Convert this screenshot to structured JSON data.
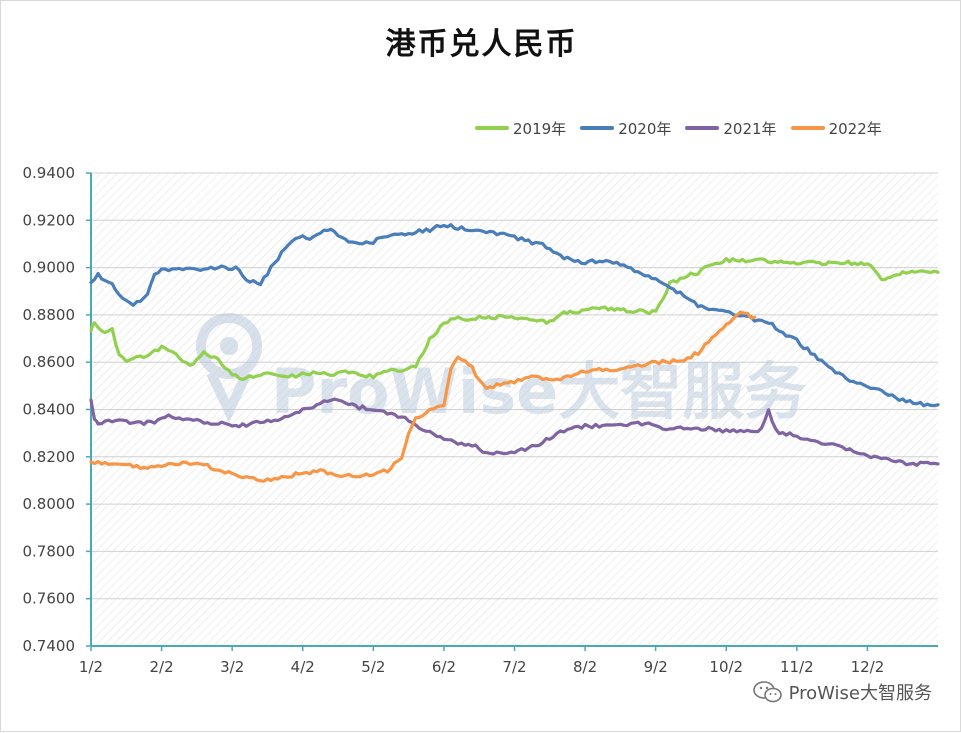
{
  "chart_data": {
    "type": "line",
    "title": "港币兑人民币",
    "xlabel": "",
    "ylabel": "",
    "ylim": [
      0.74,
      0.94
    ],
    "y_ticks": [
      "0.9400",
      "0.9200",
      "0.9000",
      "0.8800",
      "0.8600",
      "0.8400",
      "0.8200",
      "0.8000",
      "0.7800",
      "0.7600",
      "0.7400"
    ],
    "x_ticks": [
      "1/2",
      "2/2",
      "3/2",
      "4/2",
      "5/2",
      "6/2",
      "7/2",
      "8/2",
      "9/2",
      "10/2",
      "11/2",
      "12/2"
    ],
    "x_domain_months": [
      0,
      12
    ],
    "legend_position": "top-right",
    "grid": true,
    "series": [
      {
        "name": "2019年",
        "color": "#92d050",
        "x": [
          0.0,
          0.05,
          0.2,
          0.3,
          0.4,
          0.5,
          0.6,
          0.8,
          1.0,
          1.2,
          1.4,
          1.6,
          1.8,
          1.9,
          2.0,
          2.1,
          2.3,
          2.5,
          2.7,
          2.9,
          3.0,
          3.2,
          3.4,
          3.6,
          3.8,
          4.0,
          4.2,
          4.4,
          4.6,
          4.8,
          5.0,
          5.1,
          5.2,
          5.35,
          5.5,
          6.0,
          6.5,
          6.7,
          7.0,
          7.2,
          7.5,
          8.0,
          8.2,
          8.4,
          8.6,
          8.8,
          9.0,
          9.5,
          10.0,
          10.5,
          11.0,
          11.2,
          11.5,
          11.8,
          12.0
        ],
        "values": [
          0.874,
          0.876,
          0.873,
          0.874,
          0.863,
          0.861,
          0.862,
          0.863,
          0.866,
          0.863,
          0.858,
          0.864,
          0.861,
          0.857,
          0.855,
          0.853,
          0.854,
          0.855,
          0.854,
          0.854,
          0.855,
          0.856,
          0.855,
          0.856,
          0.855,
          0.854,
          0.856,
          0.857,
          0.858,
          0.87,
          0.876,
          0.879,
          0.879,
          0.878,
          0.879,
          0.879,
          0.877,
          0.881,
          0.882,
          0.883,
          0.882,
          0.881,
          0.893,
          0.896,
          0.898,
          0.902,
          0.903,
          0.903,
          0.902,
          0.902,
          0.902,
          0.895,
          0.898,
          0.898,
          0.898
        ]
      },
      {
        "name": "2020年",
        "color": "#4a7ebb",
        "x": [
          0.0,
          0.1,
          0.3,
          0.4,
          0.5,
          0.6,
          0.7,
          0.8,
          0.9,
          1.0,
          1.2,
          1.4,
          1.6,
          1.8,
          2.0,
          2.1,
          2.2,
          2.4,
          2.6,
          2.8,
          3.0,
          3.1,
          3.2,
          3.4,
          3.6,
          3.8,
          4.0,
          4.2,
          4.4,
          4.6,
          4.8,
          5.0,
          5.2,
          5.4,
          5.6,
          5.8,
          6.0,
          6.2,
          6.4,
          6.6,
          6.8,
          7.0,
          7.2,
          7.4,
          7.6,
          7.8,
          8.0,
          8.2,
          8.4,
          8.6,
          8.8,
          9.0,
          9.2,
          9.4,
          9.6,
          9.8,
          10.0,
          10.2,
          10.4,
          10.6,
          10.8,
          11.0,
          11.2,
          11.4,
          11.6,
          11.8,
          12.0
        ],
        "values": [
          0.893,
          0.897,
          0.893,
          0.888,
          0.886,
          0.884,
          0.886,
          0.889,
          0.897,
          0.899,
          0.899,
          0.899,
          0.899,
          0.9,
          0.9,
          0.899,
          0.895,
          0.893,
          0.902,
          0.91,
          0.914,
          0.912,
          0.914,
          0.916,
          0.912,
          0.91,
          0.911,
          0.913,
          0.914,
          0.915,
          0.916,
          0.918,
          0.917,
          0.916,
          0.915,
          0.914,
          0.913,
          0.911,
          0.91,
          0.906,
          0.903,
          0.902,
          0.903,
          0.902,
          0.9,
          0.897,
          0.895,
          0.892,
          0.888,
          0.884,
          0.882,
          0.881,
          0.88,
          0.878,
          0.877,
          0.872,
          0.869,
          0.864,
          0.859,
          0.855,
          0.852,
          0.85,
          0.848,
          0.845,
          0.843,
          0.842,
          0.842
        ]
      },
      {
        "name": "2021年",
        "color": "#8064a2",
        "x": [
          0.0,
          0.05,
          0.1,
          0.3,
          0.5,
          0.7,
          0.9,
          1.1,
          1.3,
          1.5,
          1.7,
          1.9,
          2.1,
          2.3,
          2.5,
          2.7,
          2.9,
          3.0,
          3.2,
          3.4,
          3.6,
          3.8,
          4.0,
          4.2,
          4.4,
          4.6,
          4.8,
          5.0,
          5.2,
          5.4,
          5.6,
          5.8,
          6.0,
          6.2,
          6.4,
          6.6,
          6.8,
          7.0,
          7.2,
          7.4,
          7.6,
          7.8,
          8.0,
          8.2,
          8.4,
          8.6,
          8.8,
          9.0,
          9.2,
          9.4,
          9.5,
          9.6,
          9.7,
          9.8,
          10.0,
          10.2,
          10.4,
          10.6,
          10.8,
          11.0,
          11.2,
          11.4,
          11.6,
          11.8,
          12.0
        ],
        "values": [
          0.844,
          0.836,
          0.834,
          0.835,
          0.835,
          0.834,
          0.835,
          0.837,
          0.836,
          0.835,
          0.834,
          0.834,
          0.833,
          0.834,
          0.835,
          0.836,
          0.838,
          0.84,
          0.842,
          0.844,
          0.843,
          0.841,
          0.84,
          0.838,
          0.837,
          0.833,
          0.83,
          0.828,
          0.826,
          0.825,
          0.822,
          0.821,
          0.822,
          0.824,
          0.826,
          0.83,
          0.832,
          0.833,
          0.833,
          0.834,
          0.834,
          0.834,
          0.833,
          0.832,
          0.832,
          0.832,
          0.832,
          0.831,
          0.831,
          0.831,
          0.832,
          0.84,
          0.831,
          0.83,
          0.829,
          0.827,
          0.826,
          0.825,
          0.822,
          0.82,
          0.819,
          0.818,
          0.817,
          0.817,
          0.817
        ]
      },
      {
        "name": "2022年",
        "color": "#f79646",
        "x": [
          0.0,
          0.2,
          0.4,
          0.6,
          0.8,
          1.0,
          1.2,
          1.4,
          1.6,
          1.8,
          2.0,
          2.2,
          2.4,
          2.6,
          2.8,
          3.0,
          3.2,
          3.4,
          3.6,
          3.8,
          4.0,
          4.2,
          4.4,
          4.5,
          4.6,
          4.8,
          5.0,
          5.1,
          5.2,
          5.4,
          5.5,
          5.6,
          5.8,
          6.0,
          6.2,
          6.4,
          6.6,
          6.8,
          7.0,
          7.2,
          7.4,
          7.6,
          7.8,
          8.0,
          8.2,
          8.4,
          8.6,
          8.8,
          9.0,
          9.2,
          9.4
        ],
        "values": [
          0.818,
          0.817,
          0.817,
          0.816,
          0.815,
          0.816,
          0.817,
          0.817,
          0.817,
          0.814,
          0.813,
          0.811,
          0.81,
          0.811,
          0.812,
          0.813,
          0.814,
          0.813,
          0.812,
          0.812,
          0.813,
          0.814,
          0.82,
          0.83,
          0.836,
          0.84,
          0.842,
          0.857,
          0.862,
          0.858,
          0.852,
          0.849,
          0.851,
          0.852,
          0.854,
          0.853,
          0.853,
          0.854,
          0.856,
          0.857,
          0.856,
          0.858,
          0.859,
          0.86,
          0.86,
          0.861,
          0.864,
          0.87,
          0.876,
          0.881,
          0.879
        ]
      }
    ]
  },
  "watermark": {
    "text": "ProWise大智服务",
    "color": "#b8c8dc"
  },
  "wechat_badge": {
    "icon": "wechat-icon",
    "text": "ProWise大智服务"
  },
  "colors": {
    "axis": "#4aa9b8",
    "grid": "#d0d0d0",
    "hatch": "#e4e4e4"
  }
}
